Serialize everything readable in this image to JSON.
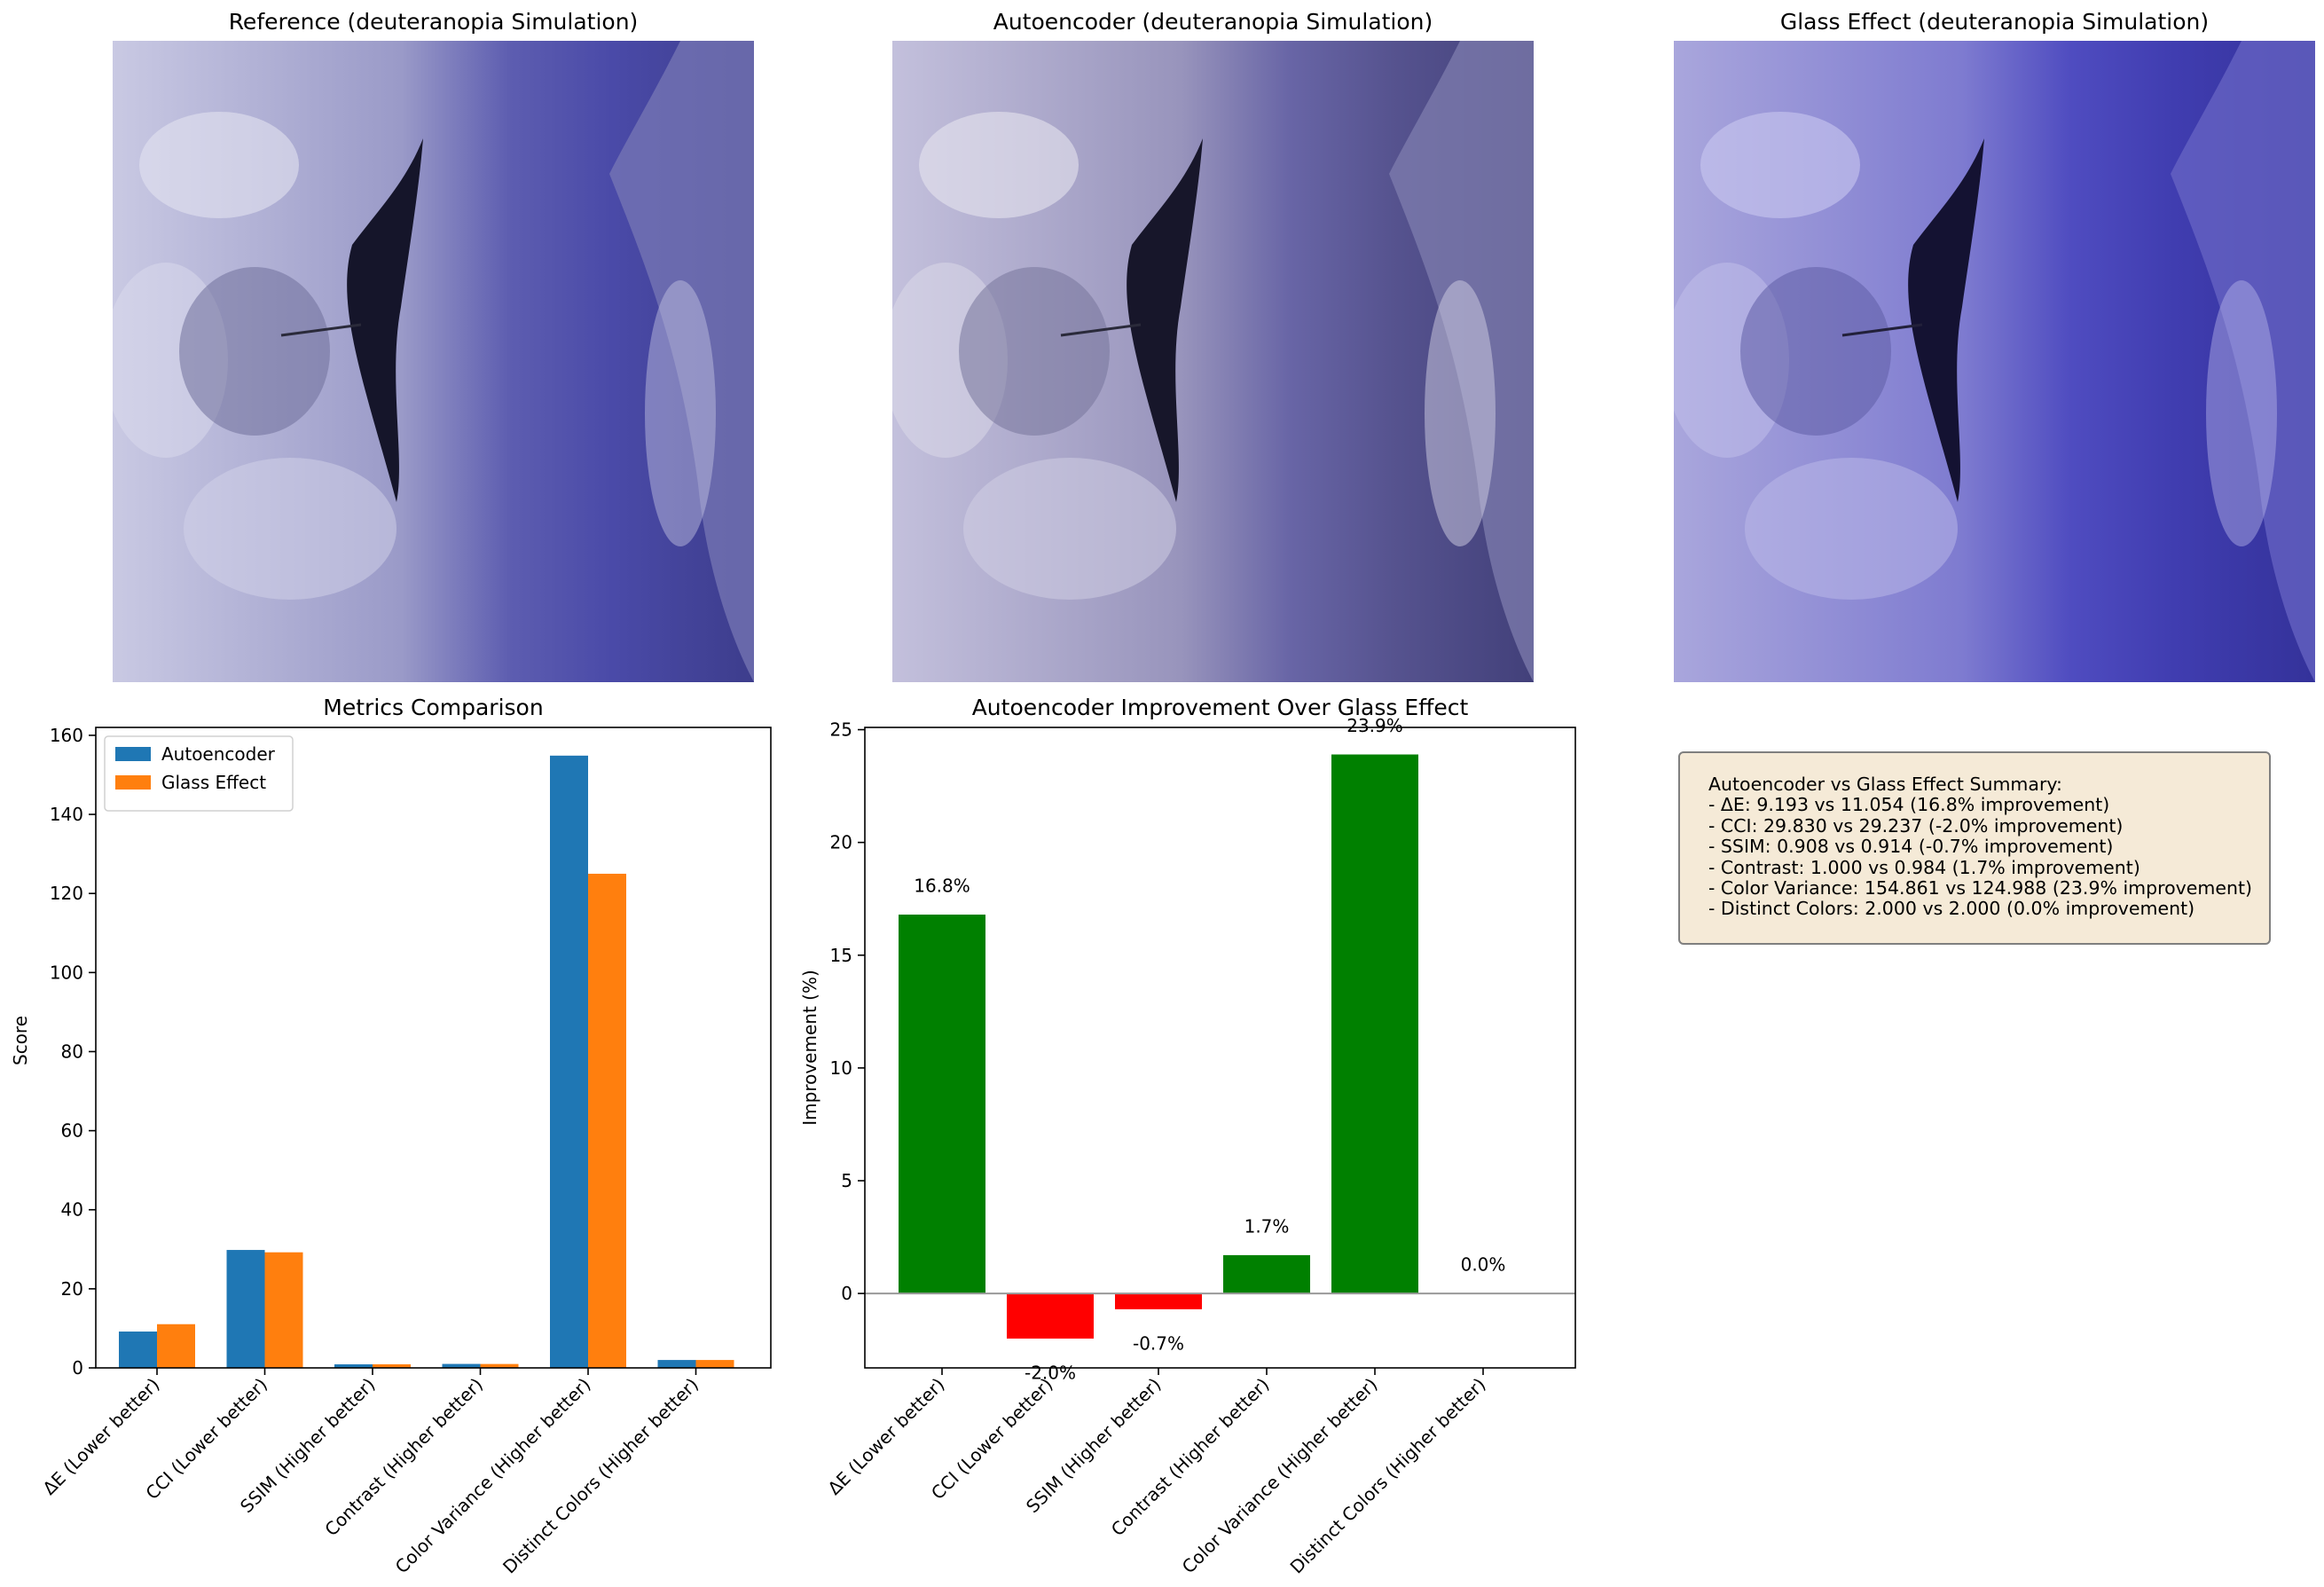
{
  "images": [
    {
      "title": "Reference (deuteranopia Simulation)",
      "variant": "reference"
    },
    {
      "title": "Autoencoder (deuteranopia Simulation)",
      "variant": "autoencoder"
    },
    {
      "title": "Glass Effect (deuteranopia Simulation)",
      "variant": "glass"
    }
  ],
  "colors": {
    "autoencoder": "#1f77b4",
    "glass_effect": "#ff7f0e",
    "positive": "#008000",
    "negative": "#ff0000",
    "summary_bg": "#f5ead7"
  },
  "chart_data": [
    {
      "type": "bar",
      "title": "Metrics Comparison",
      "xlabel": "",
      "ylabel": "Score",
      "categories": [
        "ΔE (Lower better)",
        "CCI (Lower better)",
        "SSIM (Higher better)",
        "Contrast (Higher better)",
        "Color Variance (Higher better)",
        "Distinct Colors (Higher better)"
      ],
      "series": [
        {
          "name": "Autoencoder",
          "values": [
            9.193,
            29.83,
            0.908,
            1.0,
            154.861,
            2.0
          ]
        },
        {
          "name": "Glass Effect",
          "values": [
            11.054,
            29.237,
            0.914,
            0.984,
            124.988,
            2.0
          ]
        }
      ],
      "ylim": [
        0,
        162
      ],
      "yticks": [
        0,
        20,
        40,
        60,
        80,
        100,
        120,
        140,
        160
      ],
      "legend": "top-left",
      "grid": false
    },
    {
      "type": "bar",
      "title": "Autoencoder Improvement Over Glass Effect",
      "xlabel": "",
      "ylabel": "Improvement (%)",
      "categories": [
        "ΔE (Lower better)",
        "CCI (Lower better)",
        "SSIM (Higher better)",
        "Contrast (Higher better)",
        "Color Variance (Higher better)",
        "Distinct Colors (Higher better)"
      ],
      "values": [
        16.8,
        -2.0,
        -0.7,
        1.7,
        23.9,
        0.0
      ],
      "data_labels": [
        "16.8%",
        "-2.0%",
        "-0.7%",
        "1.7%",
        "23.9%",
        "0.0%"
      ],
      "ylim": [
        -3.3,
        25.1
      ],
      "yticks": [
        0,
        5,
        10,
        15,
        20,
        25
      ],
      "grid": false
    }
  ],
  "summary": {
    "lines": [
      "Autoencoder vs Glass Effect Summary:",
      "- ΔE: 9.193 vs 11.054 (16.8% improvement)",
      "- CCI: 29.830 vs 29.237 (-2.0% improvement)",
      "- SSIM: 0.908 vs 0.914 (-0.7% improvement)",
      "- Contrast: 1.000 vs 0.984 (1.7% improvement)",
      "- Color Variance: 154.861 vs 124.988 (23.9% improvement)",
      "- Distinct Colors: 2.000 vs 2.000 (0.0% improvement)"
    ]
  }
}
